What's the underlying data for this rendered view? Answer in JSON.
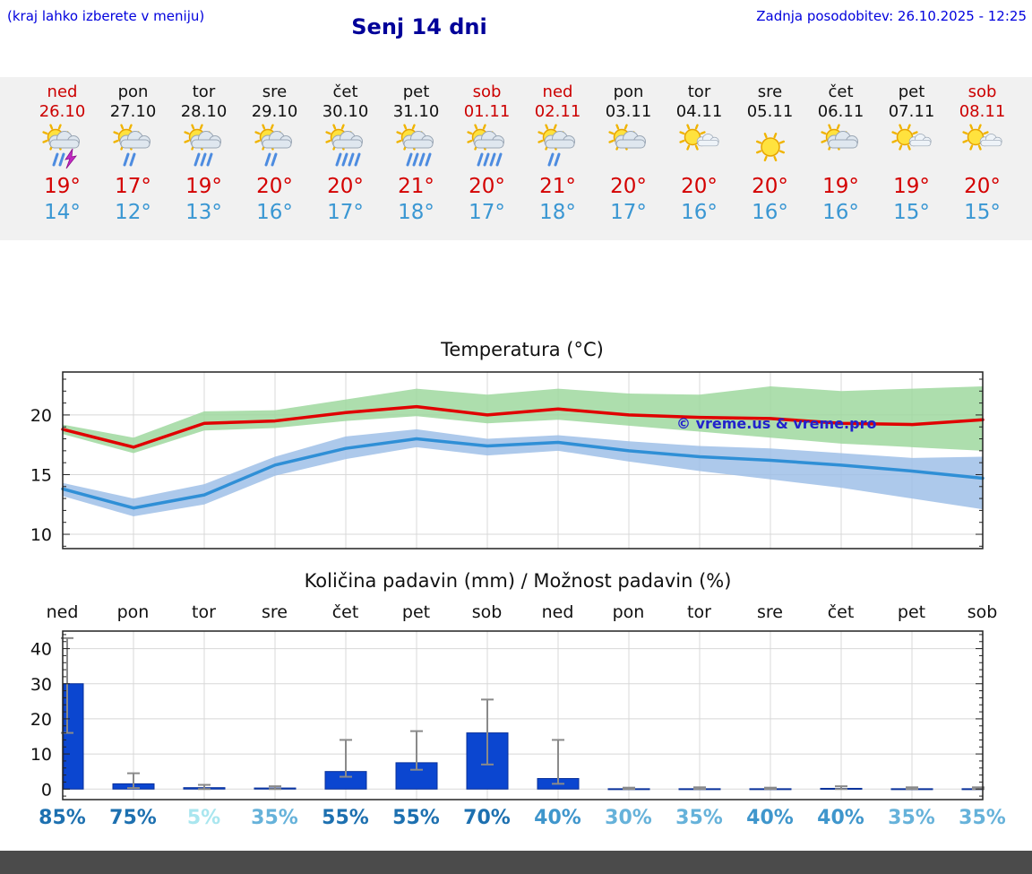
{
  "header": {
    "left_note": "(kraj lahko izberete v meniju)",
    "title": "Senj 14 dni",
    "last_update": "Zadnja posodobitev: 26.10.2025 - 12:25"
  },
  "colors": {
    "link_blue": "#0000dd",
    "title_blue": "#000099",
    "temp_max_red": "#d40000",
    "temp_min_blue": "#3a97d3",
    "bar_blue": "#0b46d0",
    "strip_bg": "#f1f1f1",
    "footer_gray": "#4b4b4b"
  },
  "days": [
    {
      "name": "ned",
      "date": "26.10",
      "weekend": true,
      "icon": "sun-cloud-thunder",
      "tmax": "19°",
      "tmin": "14°"
    },
    {
      "name": "pon",
      "date": "27.10",
      "weekend": false,
      "icon": "sun-cloud-showers",
      "tmax": "17°",
      "tmin": "12°"
    },
    {
      "name": "tor",
      "date": "28.10",
      "weekend": false,
      "icon": "sun-cloud-rain",
      "tmax": "19°",
      "tmin": "13°"
    },
    {
      "name": "sre",
      "date": "29.10",
      "weekend": false,
      "icon": "sun-cloud-showers",
      "tmax": "20°",
      "tmin": "16°"
    },
    {
      "name": "čet",
      "date": "30.10",
      "weekend": false,
      "icon": "sun-cloud-heavy-rain",
      "tmax": "20°",
      "tmin": "17°"
    },
    {
      "name": "pet",
      "date": "31.10",
      "weekend": false,
      "icon": "sun-cloud-heavy-rain",
      "tmax": "21°",
      "tmin": "18°"
    },
    {
      "name": "sob",
      "date": "01.11",
      "weekend": true,
      "icon": "sun-cloud-heavy-rain",
      "tmax": "20°",
      "tmin": "17°"
    },
    {
      "name": "ned",
      "date": "02.11",
      "weekend": true,
      "icon": "sun-cloud-showers",
      "tmax": "21°",
      "tmin": "18°"
    },
    {
      "name": "pon",
      "date": "03.11",
      "weekend": false,
      "icon": "sun-cloud",
      "tmax": "20°",
      "tmin": "17°"
    },
    {
      "name": "tor",
      "date": "04.11",
      "weekend": false,
      "icon": "sun-cloud-small",
      "tmax": "20°",
      "tmin": "16°"
    },
    {
      "name": "sre",
      "date": "05.11",
      "weekend": false,
      "icon": "sun",
      "tmax": "20°",
      "tmin": "16°"
    },
    {
      "name": "čet",
      "date": "06.11",
      "weekend": false,
      "icon": "sun-cloud",
      "tmax": "19°",
      "tmin": "16°"
    },
    {
      "name": "pet",
      "date": "07.11",
      "weekend": false,
      "icon": "sun-cloud-small",
      "tmax": "19°",
      "tmin": "15°"
    },
    {
      "name": "sob",
      "date": "08.11",
      "weekend": true,
      "icon": "sun-cloud-small",
      "tmax": "20°",
      "tmin": "15°"
    }
  ],
  "chart_data": [
    {
      "type": "line",
      "title": "Temperatura (°C)",
      "x": [
        "26.10",
        "27.10",
        "28.10",
        "29.10",
        "30.10",
        "31.10",
        "01.11",
        "02.11",
        "03.11",
        "04.11",
        "05.11",
        "06.11",
        "07.11",
        "08.11"
      ],
      "ylim": [
        8.8,
        23.6
      ],
      "yticks": [
        10,
        15,
        20
      ],
      "grid": true,
      "legend_position": "none",
      "series": [
        {
          "name": "max-temperature",
          "color": "#e00000",
          "values": [
            18.8,
            17.3,
            19.3,
            19.5,
            20.2,
            20.7,
            20.0,
            20.5,
            20.0,
            19.8,
            19.7,
            19.3,
            19.2,
            19.6
          ]
        },
        {
          "name": "min-temperature",
          "color": "#2f8fd6",
          "values": [
            13.8,
            12.2,
            13.3,
            15.8,
            17.2,
            18.0,
            17.4,
            17.7,
            17.0,
            16.5,
            16.2,
            15.8,
            15.3,
            14.7
          ]
        }
      ],
      "bands": [
        {
          "name": "max-temperature-range",
          "color": "#9fd89f",
          "upper": [
            19.2,
            18.1,
            20.3,
            20.4,
            21.3,
            22.2,
            21.7,
            22.2,
            21.8,
            21.7,
            22.4,
            22.0,
            22.2,
            22.4
          ],
          "lower": [
            18.4,
            16.8,
            18.7,
            18.9,
            19.5,
            19.9,
            19.3,
            19.6,
            19.1,
            18.6,
            18.1,
            17.6,
            17.3,
            17.0
          ]
        },
        {
          "name": "min-temperature-range",
          "color": "#9fc0e8",
          "upper": [
            14.3,
            13.0,
            14.2,
            16.5,
            18.2,
            18.8,
            18.0,
            18.3,
            17.8,
            17.4,
            17.2,
            16.8,
            16.4,
            16.5
          ],
          "lower": [
            13.2,
            11.5,
            12.5,
            14.9,
            16.3,
            17.3,
            16.6,
            17.0,
            16.1,
            15.3,
            14.6,
            13.9,
            13.0,
            12.1
          ]
        }
      ],
      "watermark": "© vreme.us & vreme.pro"
    },
    {
      "type": "bar",
      "title": "Količina padavin (mm) / Možnost padavin (%)",
      "categories": [
        "ned",
        "pon",
        "tor",
        "sre",
        "čet",
        "pet",
        "sob",
        "ned",
        "pon",
        "tor",
        "sre",
        "čet",
        "pet",
        "sob"
      ],
      "values": [
        30,
        1.5,
        0.4,
        0.3,
        5,
        7.5,
        16,
        3,
        0.1,
        0.1,
        0.1,
        0.2,
        0.1,
        0.1
      ],
      "error_low": [
        16,
        0.3,
        0,
        0,
        3.5,
        5.5,
        7,
        1.5,
        0,
        0,
        0,
        0,
        0,
        0
      ],
      "error_high": [
        43,
        4.5,
        1.2,
        0.8,
        14,
        16.5,
        25.5,
        14,
        0.4,
        0.5,
        0.4,
        0.8,
        0.5,
        0.5
      ],
      "ylim": [
        -3,
        45
      ],
      "yticks": [
        0,
        10,
        20,
        30,
        40
      ],
      "bar_color": "#0b46d0",
      "probabilities": [
        {
          "label": "85%",
          "color": "#1d70b0"
        },
        {
          "label": "75%",
          "color": "#1d70b0"
        },
        {
          "label": "5%",
          "color": "#a9e6ef"
        },
        {
          "label": "35%",
          "color": "#66b2da"
        },
        {
          "label": "55%",
          "color": "#1d70b0"
        },
        {
          "label": "55%",
          "color": "#1d70b0"
        },
        {
          "label": "70%",
          "color": "#1d70b0"
        },
        {
          "label": "40%",
          "color": "#3f96cc"
        },
        {
          "label": "30%",
          "color": "#66b2da"
        },
        {
          "label": "35%",
          "color": "#66b2da"
        },
        {
          "label": "40%",
          "color": "#3f96cc"
        },
        {
          "label": "40%",
          "color": "#3f96cc"
        },
        {
          "label": "35%",
          "color": "#66b2da"
        },
        {
          "label": "35%",
          "color": "#66b2da"
        }
      ]
    }
  ]
}
